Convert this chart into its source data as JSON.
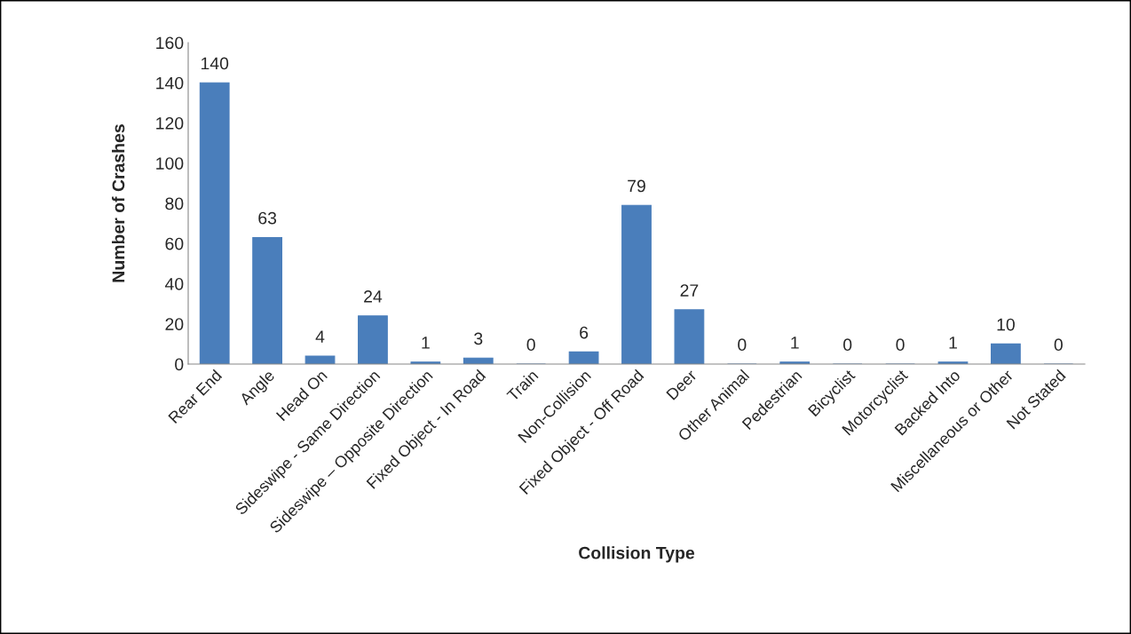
{
  "chart_data": {
    "type": "bar",
    "xlabel": "Collision Type",
    "ylabel": "Number of Crashes",
    "categories": [
      "Rear End",
      "Angle",
      "Head On",
      "Sideswipe - Same Direction",
      "Sideswipe – Opposite Direction",
      "Fixed Object - In Road",
      "Train",
      "Non-Collision",
      "Fixed Object - Off Road",
      "Deer",
      "Other Animal",
      "Pedestrian",
      "Bicyclist",
      "Motorcyclist",
      "Backed Into",
      "Miscellaneous or Other",
      "Not Stated"
    ],
    "values": [
      140,
      63,
      4,
      24,
      1,
      3,
      0,
      6,
      79,
      27,
      0,
      1,
      0,
      0,
      1,
      10,
      0
    ],
    "color": "#4a7ebb",
    "ylim": [
      0,
      160
    ],
    "yticks": [
      0,
      20,
      40,
      60,
      80,
      100,
      120,
      140,
      160
    ],
    "grid": false,
    "data_labels": true
  }
}
